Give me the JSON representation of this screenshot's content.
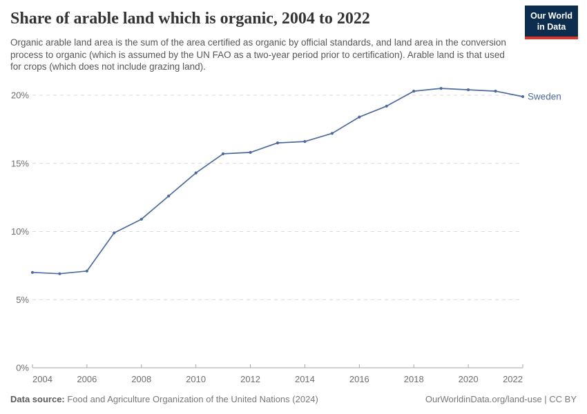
{
  "header": {
    "title": "Share of arable land which is organic, 2004 to 2022",
    "subtitle": "Organic arable land area is the sum of the area certified as organic by official standards, and land area in the conversion process to organic (which is assumed by the UN FAO as a two-year period prior to certification). Arable land is that used for crops (which does not include grazing land).",
    "logo": {
      "line1": "Our World",
      "line2": "in Data",
      "bg_color": "#0d2d4f",
      "stripe_color": "#dd352a",
      "text_color": "#ffffff"
    }
  },
  "chart_data": {
    "type": "line",
    "title": "Share of arable land which is organic, 2004 to 2022",
    "xlabel": "",
    "ylabel": "",
    "x_ticks": [
      2004,
      2006,
      2008,
      2010,
      2012,
      2014,
      2016,
      2018,
      2020,
      2022
    ],
    "y_ticks": [
      0,
      5,
      10,
      15,
      20
    ],
    "y_tick_suffix": "%",
    "xlim": [
      2004,
      2022
    ],
    "ylim": [
      0,
      21.2
    ],
    "grid": "horizontal-dashed",
    "legend_position": "end-of-line",
    "grid_color": "#d9d9d9",
    "axis_color": "#a6a6a6",
    "tick_label_color": "#6e6e6e",
    "series": [
      {
        "name": "Sweden",
        "color": "#4c6a9c",
        "x": [
          2004,
          2005,
          2006,
          2007,
          2008,
          2009,
          2010,
          2011,
          2012,
          2013,
          2014,
          2015,
          2016,
          2017,
          2018,
          2019,
          2020,
          2021,
          2022
        ],
        "values": [
          7.0,
          6.9,
          7.1,
          9.9,
          10.9,
          12.6,
          14.3,
          15.7,
          15.8,
          16.5,
          16.6,
          17.2,
          18.4,
          19.2,
          20.3,
          20.5,
          20.4,
          20.3,
          19.9
        ]
      }
    ]
  },
  "footer": {
    "datasource_label": "Data source:",
    "datasource_text": " Food and Agriculture Organization of the United Nations (2024)",
    "credit": "OurWorldinData.org/land-use | CC BY"
  }
}
